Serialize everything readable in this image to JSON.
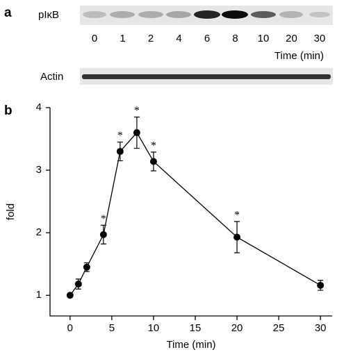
{
  "panels": [
    "a",
    "b"
  ],
  "blot": {
    "label": "pIκB",
    "lanes": [
      "0",
      "1",
      "2",
      "4",
      "6",
      "8",
      "10",
      "20",
      "30"
    ],
    "time_label": "Time (min)",
    "control_label": "Actin"
  },
  "chart_data": {
    "type": "line",
    "xlabel": "Time (min)",
    "ylabel": "fold",
    "x": [
      0,
      1,
      2,
      4,
      6,
      8,
      10,
      20,
      30
    ],
    "series": [
      {
        "name": "pIκB",
        "color": "#000000",
        "values": [
          1.0,
          1.18,
          1.45,
          1.97,
          3.3,
          3.6,
          3.14,
          1.93,
          1.16
        ],
        "errors": [
          0,
          0.08,
          0.07,
          0.15,
          0.15,
          0.25,
          0.15,
          0.25,
          0.08
        ]
      }
    ],
    "significant": [
      false,
      false,
      false,
      true,
      true,
      true,
      true,
      true,
      false
    ],
    "annotation_marker": "*",
    "xlim": [
      -2.4,
      31.4
    ],
    "ylim": [
      0.67,
      4.0
    ],
    "xticks": [
      0,
      5,
      10,
      15,
      20,
      25,
      30
    ],
    "yticks": [
      1,
      2,
      3,
      4
    ],
    "grid": false
  }
}
